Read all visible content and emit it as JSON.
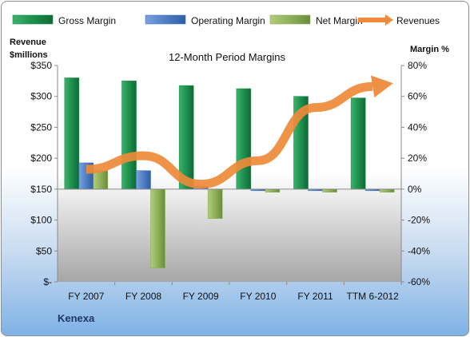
{
  "colors": {
    "gross": "#1e8f4e",
    "operating": "#4f7ec4",
    "net": "#8fb05a",
    "revenues": "#ee8a3a"
  },
  "company": "Kenexa",
  "chart_data": {
    "type": "bar",
    "title": "12-Month Period Margins",
    "ylabel_left": [
      "Revenue",
      "$millions"
    ],
    "ylabel_right": "Margin %",
    "categories": [
      "FY 2007",
      "FY 2008",
      "FY 2009",
      "FY 2010",
      "FY 2011",
      "TTM 6-2012"
    ],
    "left_axis": {
      "min": 0,
      "max": 350,
      "step": 50,
      "ticks": [
        "$-",
        "$50",
        "$100",
        "$150",
        "$200",
        "$250",
        "$300",
        "$350"
      ]
    },
    "right_axis": {
      "min": -60,
      "max": 80,
      "step": 20,
      "ticks": [
        "-60%",
        "-40%",
        "-20%",
        "0%",
        "20%",
        "40%",
        "60%",
        "80%"
      ]
    },
    "legend_position": "top",
    "grid": false,
    "series": [
      {
        "name": "Gross Margin",
        "axis": "right",
        "type": "bar",
        "values": [
          72,
          70,
          67,
          65,
          60,
          59
        ]
      },
      {
        "name": "Operating Margin",
        "axis": "right",
        "type": "bar",
        "values": [
          17,
          12,
          2,
          -1,
          -1,
          -1
        ]
      },
      {
        "name": "Net Margin",
        "axis": "right",
        "type": "bar",
        "values": [
          12,
          -51,
          -19,
          -2,
          -2,
          -2
        ]
      },
      {
        "name": "Revenues",
        "axis": "left",
        "type": "line",
        "values": [
          182,
          204,
          158,
          196,
          282,
          316
        ]
      }
    ]
  }
}
